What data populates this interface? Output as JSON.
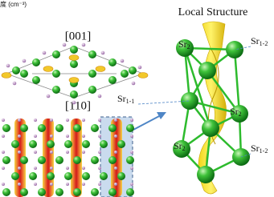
{
  "header_fragment": "度 (cm⁻³)",
  "panels": [
    {
      "label": "[001]"
    },
    {
      "label": "[110]"
    }
  ],
  "local_structure": {
    "title": "Local Structure",
    "atom_labels": [
      {
        "element": "Sr",
        "site": "2"
      },
      {
        "element": "Sr",
        "site": "1-2"
      },
      {
        "element": "Sr",
        "site": "1-1"
      },
      {
        "element": "Sr",
        "site": "2"
      },
      {
        "element": "Sr",
        "site": "2"
      },
      {
        "element": "Sr",
        "site": "1-2"
      }
    ]
  }
}
